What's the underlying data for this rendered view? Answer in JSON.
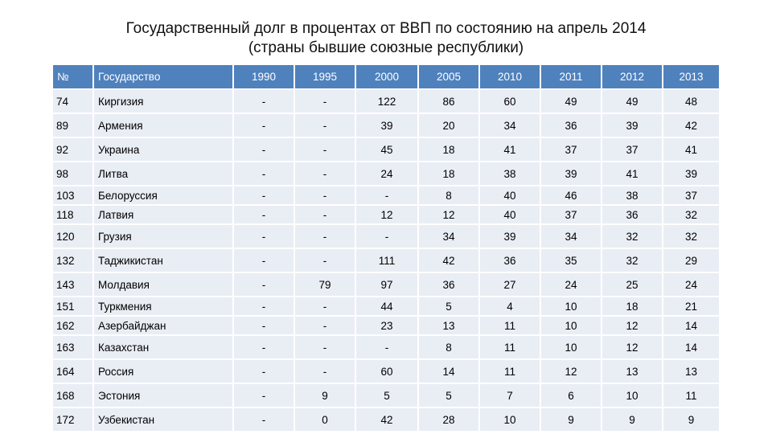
{
  "title": {
    "line1": "Государственный долг в процентах от ВВП по состоянию на апрель 2014",
    "line2": "(страны бывшие союзные республики)"
  },
  "table": {
    "headers": [
      "№",
      "Государство",
      "1990",
      "1995",
      "2000",
      "2005",
      "2010",
      "2011",
      "2012",
      "2013"
    ],
    "rows": [
      [
        "74",
        "Киргизия",
        "-",
        "-",
        "122",
        "86",
        "60",
        "49",
        "49",
        "48"
      ],
      [
        "89",
        "Армения",
        "-",
        "-",
        "39",
        "20",
        "34",
        "36",
        "39",
        "42"
      ],
      [
        "92",
        "Украина",
        "-",
        "-",
        "45",
        "18",
        "41",
        "37",
        "37",
        "41"
      ],
      [
        "98",
        "Литва",
        "-",
        "-",
        "24",
        "18",
        "38",
        "39",
        "41",
        "39"
      ],
      [
        "103",
        "Белоруссия",
        "-",
        "-",
        "-",
        "8",
        "40",
        "46",
        "38",
        "37"
      ],
      [
        "118",
        "Латвия",
        "-",
        "-",
        "12",
        "12",
        "40",
        "37",
        "36",
        "32"
      ],
      [
        "120",
        "Грузия",
        "-",
        "-",
        "-",
        "34",
        "39",
        "34",
        "32",
        "32"
      ],
      [
        "132",
        "Таджикистан",
        "-",
        "-",
        "111",
        "42",
        "36",
        "35",
        "32",
        "29"
      ],
      [
        "143",
        "Молдавия",
        "-",
        "79",
        "97",
        "36",
        "27",
        "24",
        "25",
        "24"
      ],
      [
        "151",
        "Туркмения",
        "-",
        "-",
        "44",
        "5",
        "4",
        "10",
        "18",
        "21"
      ],
      [
        "162",
        "Азербайджан",
        "-",
        "-",
        "23",
        "13",
        "11",
        "10",
        "12",
        "14"
      ],
      [
        "163",
        "Казахстан",
        "-",
        "-",
        "-",
        "8",
        "11",
        "10",
        "12",
        "14"
      ],
      [
        "164",
        "Россия",
        "-",
        "-",
        "60",
        "14",
        "11",
        "12",
        "13",
        "13"
      ],
      [
        "168",
        "Эстония",
        "-",
        "9",
        "5",
        "5",
        "7",
        "6",
        "10",
        "11"
      ],
      [
        "172",
        "Узбекистан",
        "-",
        "0",
        "42",
        "28",
        "10",
        "9",
        "9",
        "9"
      ]
    ]
  }
}
